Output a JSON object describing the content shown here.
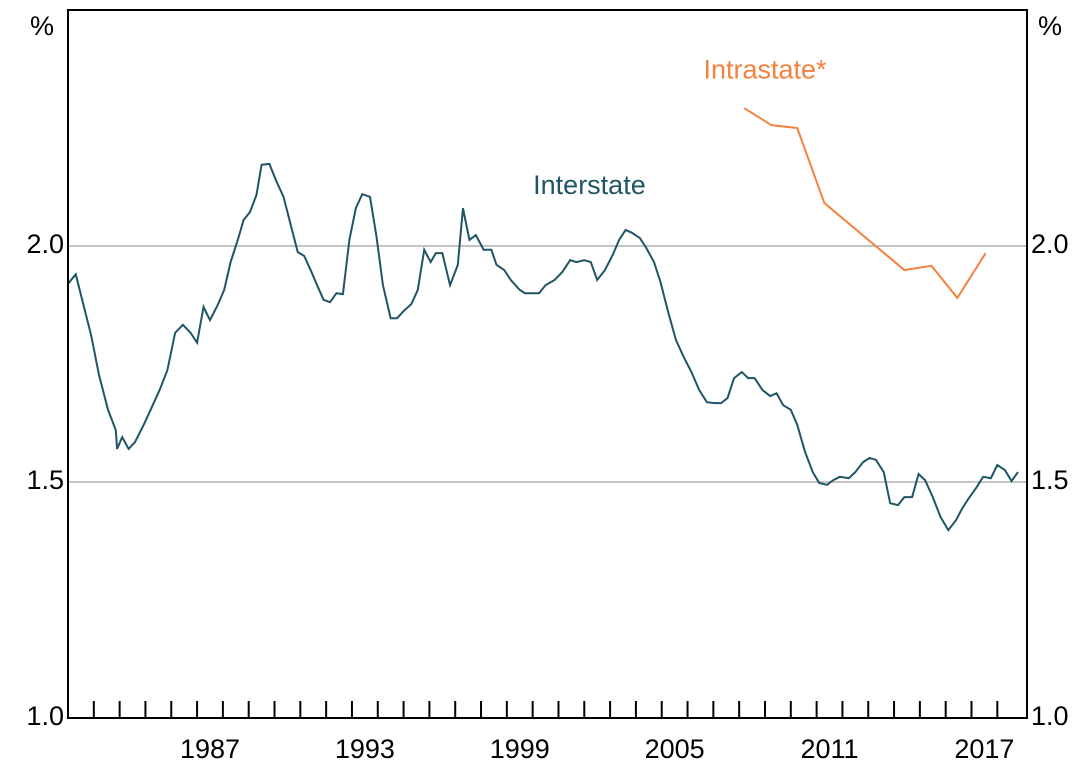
{
  "chart_data": {
    "type": "line",
    "y_unit_left": "%",
    "y_unit_right": "%",
    "xlim": [
      1982,
      2019.15
    ],
    "ylim": [
      1.0,
      2.5
    ],
    "yticks": [
      {
        "value": 1.0,
        "label": "1.0"
      },
      {
        "value": 1.5,
        "label": "1.5"
      },
      {
        "value": 2.0,
        "label": "2.0"
      }
    ],
    "grid_values": [
      1.5,
      2.0
    ],
    "xticks": [
      {
        "value": 1987.5,
        "label": "1987"
      },
      {
        "value": 1993.5,
        "label": "1993"
      },
      {
        "value": 1999.5,
        "label": "1999"
      },
      {
        "value": 2005.5,
        "label": "2005"
      },
      {
        "value": 2011.5,
        "label": "2011"
      },
      {
        "value": 2017.5,
        "label": "2017"
      }
    ],
    "xminor_ticks": [
      1983,
      1984,
      1985,
      1986,
      1987,
      1988,
      1989,
      1990,
      1991,
      1992,
      1993,
      1994,
      1995,
      1996,
      1997,
      1998,
      1999,
      2000,
      2001,
      2002,
      2003,
      2004,
      2005,
      2006,
      2007,
      2008,
      2009,
      2010,
      2011,
      2012,
      2013,
      2014,
      2015,
      2016,
      2017,
      2018
    ],
    "annotations": [
      {
        "text": "Interstate",
        "x": 2002.2,
        "y": 2.125,
        "color": "#1f5566"
      },
      {
        "text": "Intrastate*",
        "x": 2009.0,
        "y": 2.37,
        "color": "#f5813f"
      }
    ],
    "series": [
      {
        "name": "Interstate",
        "color": "#1f5566",
        "x": [
          1982.0,
          1982.3,
          1982.6,
          1982.9,
          1983.2,
          1983.55,
          1983.85,
          1983.9,
          1984.1,
          1984.35,
          1984.6,
          1984.95,
          1985.2,
          1985.55,
          1985.85,
          1986.15,
          1986.45,
          1986.75,
          1987.0,
          1987.25,
          1987.5,
          1987.8,
          1988.05,
          1988.3,
          1988.6,
          1988.8,
          1989.05,
          1989.3,
          1989.5,
          1989.8,
          1990.05,
          1990.35,
          1990.65,
          1990.9,
          1991.15,
          1991.4,
          1991.65,
          1991.9,
          1992.15,
          1992.4,
          1992.65,
          1992.9,
          1993.15,
          1993.4,
          1993.7,
          1993.95,
          1994.2,
          1994.5,
          1994.75,
          1995.0,
          1995.3,
          1995.55,
          1995.8,
          1996.05,
          1996.25,
          1996.5,
          1996.8,
          1997.1,
          1997.3,
          1997.55,
          1997.8,
          1998.1,
          1998.4,
          1998.6,
          1998.9,
          1999.15,
          1999.5,
          1999.7,
          2000.0,
          2000.25,
          2000.5,
          2000.85,
          2001.15,
          2001.45,
          2001.7,
          2002.0,
          2002.25,
          2002.5,
          2002.8,
          2003.1,
          2003.35,
          2003.6,
          2003.85,
          2004.15,
          2004.4,
          2004.7,
          2004.95,
          2005.25,
          2005.55,
          2005.85,
          2006.15,
          2006.45,
          2006.75,
          2007.05,
          2007.3,
          2007.55,
          2007.8,
          2008.1,
          2008.35,
          2008.6,
          2008.9,
          2009.2,
          2009.45,
          2009.7,
          2010.0,
          2010.25,
          2010.55,
          2010.85,
          2011.1,
          2011.4,
          2011.65,
          2011.9,
          2012.25,
          2012.5,
          2012.8,
          2013.05,
          2013.3,
          2013.6,
          2013.85,
          2014.15,
          2014.4,
          2014.7,
          2014.95,
          2015.2,
          2015.5,
          2015.8,
          2016.1,
          2016.4,
          2016.65,
          2016.9,
          2017.2,
          2017.45,
          2017.75,
          2018.0,
          2018.3,
          2018.55,
          2018.8
        ],
        "values": [
          1.92,
          1.94,
          1.875,
          1.81,
          1.727,
          1.653,
          1.61,
          1.57,
          1.595,
          1.57,
          1.585,
          1.623,
          1.653,
          1.695,
          1.737,
          1.816,
          1.833,
          1.816,
          1.795,
          1.871,
          1.843,
          1.875,
          1.907,
          1.966,
          2.017,
          2.055,
          2.072,
          2.108,
          2.172,
          2.174,
          2.14,
          2.104,
          2.04,
          1.987,
          1.979,
          1.949,
          1.917,
          1.886,
          1.881,
          1.9,
          1.898,
          2.013,
          2.08,
          2.11,
          2.104,
          2.02,
          1.917,
          1.847,
          1.847,
          1.862,
          1.877,
          1.907,
          1.992,
          1.966,
          1.985,
          1.985,
          1.917,
          1.96,
          2.08,
          2.013,
          2.023,
          1.992,
          1.992,
          1.96,
          1.949,
          1.928,
          1.907,
          1.9,
          1.9,
          1.9,
          1.917,
          1.928,
          1.945,
          1.97,
          1.966,
          1.97,
          1.966,
          1.928,
          1.949,
          1.981,
          2.013,
          2.034,
          2.028,
          2.017,
          1.996,
          1.966,
          1.924,
          1.86,
          1.801,
          1.765,
          1.733,
          1.695,
          1.669,
          1.667,
          1.667,
          1.678,
          1.72,
          1.733,
          1.72,
          1.72,
          1.695,
          1.682,
          1.688,
          1.663,
          1.653,
          1.621,
          1.564,
          1.521,
          1.498,
          1.494,
          1.504,
          1.511,
          1.508,
          1.521,
          1.542,
          1.551,
          1.547,
          1.521,
          1.455,
          1.451,
          1.468,
          1.468,
          1.517,
          1.504,
          1.468,
          1.426,
          1.398,
          1.419,
          1.445,
          1.466,
          1.489,
          1.511,
          1.508,
          1.536,
          1.525,
          1.502,
          1.521
        ]
      },
      {
        "name": "Intrastate*",
        "color": "#f5813f",
        "x": [
          2008.2,
          2009.25,
          2010.25,
          2011.3,
          2014.4,
          2015.45,
          2016.45,
          2017.55
        ],
        "values": [
          2.292,
          2.256,
          2.25,
          2.091,
          1.949,
          1.958,
          1.89,
          1.985
        ]
      }
    ]
  }
}
